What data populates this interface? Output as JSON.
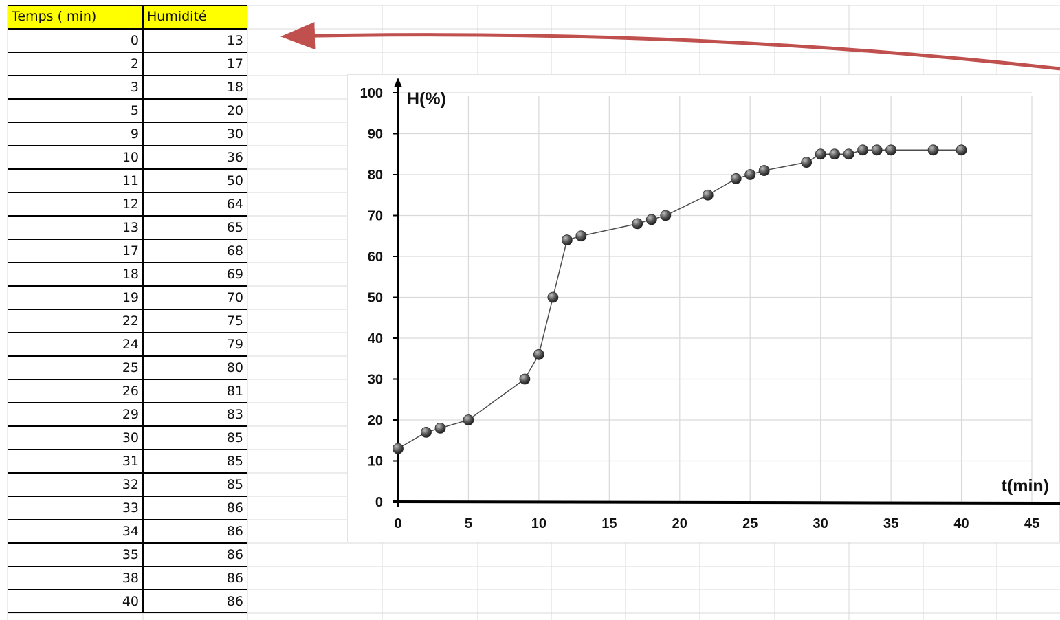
{
  "table": {
    "headers": [
      "Temps ( min)",
      "Humidité"
    ],
    "rows": [
      [
        "0",
        "13"
      ],
      [
        "2",
        "17"
      ],
      [
        "3",
        "18"
      ],
      [
        "5",
        "20"
      ],
      [
        "9",
        "30"
      ],
      [
        "10",
        "36"
      ],
      [
        "11",
        "50"
      ],
      [
        "12",
        "64"
      ],
      [
        "13",
        "65"
      ],
      [
        "17",
        "68"
      ],
      [
        "18",
        "69"
      ],
      [
        "19",
        "70"
      ],
      [
        "22",
        "75"
      ],
      [
        "24",
        "79"
      ],
      [
        "25",
        "80"
      ],
      [
        "26",
        "81"
      ],
      [
        "29",
        "83"
      ],
      [
        "30",
        "85"
      ],
      [
        "31",
        "85"
      ],
      [
        "32",
        "85"
      ],
      [
        "33",
        "86"
      ],
      [
        "34",
        "86"
      ],
      [
        "35",
        "86"
      ],
      [
        "38",
        "86"
      ],
      [
        "40",
        "86"
      ]
    ]
  },
  "colors": {
    "header_fill": "#ffff00",
    "arrow": "#c0504d",
    "marker": "#4a4a4a",
    "gridline": "#d9d9d9"
  },
  "chart_data": {
    "type": "scatter",
    "title": "",
    "xlabel": "t(min)",
    "ylabel": "H(%)",
    "xlim": [
      0,
      45
    ],
    "ylim": [
      0,
      100
    ],
    "xticks": [
      "0",
      "5",
      "10",
      "15",
      "20",
      "25",
      "30",
      "35",
      "40",
      "45"
    ],
    "yticks": [
      "0",
      "10",
      "20",
      "30",
      "40",
      "50",
      "60",
      "70",
      "80",
      "90",
      "100"
    ],
    "grid": true,
    "lines_and_markers": true,
    "x": [
      0,
      2,
      3,
      5,
      9,
      10,
      11,
      12,
      13,
      17,
      18,
      19,
      22,
      24,
      25,
      26,
      29,
      30,
      31,
      32,
      33,
      34,
      35,
      38,
      40
    ],
    "y": [
      13,
      17,
      18,
      20,
      30,
      36,
      50,
      64,
      65,
      68,
      69,
      70,
      75,
      79,
      80,
      81,
      83,
      85,
      85,
      85,
      86,
      86,
      86,
      86,
      86
    ]
  }
}
